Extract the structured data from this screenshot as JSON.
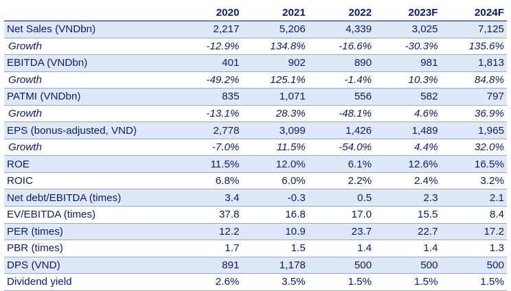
{
  "table": {
    "corner": "",
    "years": [
      "2020",
      "2021",
      "2022",
      "2023F",
      "2024F"
    ],
    "rows": [
      {
        "label": "Net Sales (VNDbn)",
        "values": [
          "2,217",
          "5,206",
          "4,339",
          "3,025",
          "7,125"
        ],
        "shaded": true,
        "italic": false
      },
      {
        "label": "Growth",
        "values": [
          "-12.9%",
          "134.8%",
          "-16.6%",
          "-30.3%",
          "135.6%"
        ],
        "shaded": false,
        "italic": true
      },
      {
        "label": "EBITDA (VNDbn)",
        "values": [
          "401",
          "902",
          "890",
          "981",
          "1,813"
        ],
        "shaded": true,
        "italic": false
      },
      {
        "label": "Growth",
        "values": [
          "-49.2%",
          "125.1%",
          "-1.4%",
          "10.3%",
          "84.8%"
        ],
        "shaded": false,
        "italic": true
      },
      {
        "label": "PATMI (VNDbn)",
        "values": [
          "835",
          "1,071",
          "556",
          "582",
          "797"
        ],
        "shaded": true,
        "italic": false
      },
      {
        "label": "Growth",
        "values": [
          "-13.1%",
          "28.3%",
          "-48.1%",
          "4.6%",
          "36.9%"
        ],
        "shaded": false,
        "italic": true
      },
      {
        "label": "EPS (bonus-adjusted, VND)",
        "values": [
          "2,778",
          "3,099",
          "1,426",
          "1,489",
          "1,965"
        ],
        "shaded": true,
        "italic": false
      },
      {
        "label": "Growth",
        "values": [
          "-7.0%",
          "11.5%",
          "-54.0%",
          "4.4%",
          "32.0%"
        ],
        "shaded": false,
        "italic": true
      },
      {
        "label": "ROE",
        "values": [
          "11.5%",
          "12.0%",
          "6.1%",
          "12.6%",
          "16.5%"
        ],
        "shaded": true,
        "italic": false
      },
      {
        "label": "ROIC",
        "values": [
          "6.8%",
          "6.0%",
          "2.2%",
          "2.4%",
          "3.2%"
        ],
        "shaded": false,
        "italic": false
      },
      {
        "label": "Net debt/EBITDA (times)",
        "values": [
          "3.4",
          "-0.3",
          "0.5",
          "2.3",
          "2.1"
        ],
        "shaded": true,
        "italic": false
      },
      {
        "label": "EV/EBITDA (times)",
        "values": [
          "37.8",
          "16.8",
          "17.0",
          "15.5",
          "8.4"
        ],
        "shaded": false,
        "italic": false
      },
      {
        "label": "PER (times)",
        "values": [
          "12.2",
          "10.9",
          "23.7",
          "22.7",
          "17.2"
        ],
        "shaded": true,
        "italic": false
      },
      {
        "label": "PBR (times)",
        "values": [
          "1.7",
          "1.5",
          "1.4",
          "1.4",
          "1.3"
        ],
        "shaded": false,
        "italic": false
      },
      {
        "label": "DPS (VND)",
        "values": [
          "891",
          "1,178",
          "500",
          "500",
          "500"
        ],
        "shaded": true,
        "italic": false
      },
      {
        "label": "Dividend yield",
        "values": [
          "2.6%",
          "3.5%",
          "1.5%",
          "1.5%",
          "1.5%"
        ],
        "shaded": false,
        "italic": false
      }
    ]
  },
  "colors": {
    "text": "#0b1a6e",
    "shade": "#dfe8f7",
    "rule": "#9aa6c9"
  }
}
